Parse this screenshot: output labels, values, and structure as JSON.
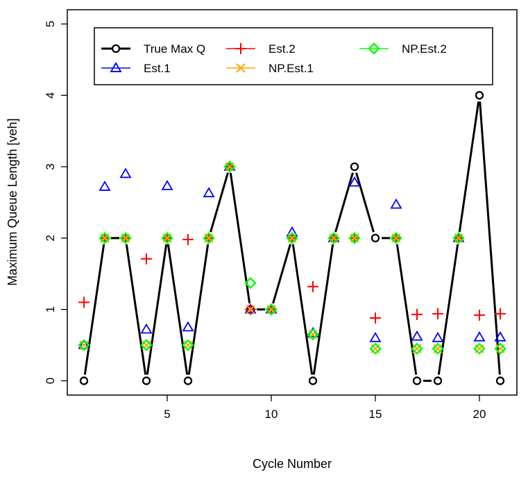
{
  "chart_data": {
    "type": "line",
    "title": "",
    "xlabel": "Cycle Number",
    "ylabel": "Maximum Queue Length [veh]",
    "xlim": [
      0.2,
      21.8
    ],
    "ylim": [
      -0.2,
      5.2
    ],
    "xticks": [
      5,
      10,
      15,
      20
    ],
    "yticks": [
      0,
      1,
      2,
      3,
      4,
      5
    ],
    "x": [
      1,
      2,
      3,
      4,
      5,
      6,
      7,
      8,
      9,
      10,
      11,
      12,
      13,
      14,
      15,
      16,
      17,
      18,
      19,
      20,
      21
    ],
    "legend_position": "top",
    "series": [
      {
        "name": "True Max Q",
        "color": "#000000",
        "marker": "circle",
        "line": true,
        "values": [
          0,
          2,
          2,
          0,
          2,
          0,
          2,
          3,
          1,
          1,
          2,
          0,
          2,
          3,
          2,
          2,
          0,
          0,
          2,
          4,
          0
        ]
      },
      {
        "name": "Est.1",
        "color": "#0000ff",
        "marker": "triangle",
        "line": false,
        "values": [
          0.5,
          2.72,
          2.9,
          0.72,
          2.73,
          0.75,
          2.63,
          3.0,
          1.0,
          1.0,
          2.08,
          0.67,
          2.0,
          2.78,
          0.6,
          2.47,
          0.62,
          0.6,
          2.0,
          0.61,
          0.61
        ]
      },
      {
        "name": "Est.2",
        "color": "#ff0000",
        "marker": "plus",
        "line": false,
        "values": [
          1.1,
          2.0,
          2.0,
          1.71,
          2.0,
          1.98,
          2.0,
          3.0,
          1.0,
          1.0,
          2.0,
          1.32,
          2.0,
          2.0,
          0.88,
          2.0,
          0.93,
          0.94,
          2.0,
          0.92,
          0.94
        ]
      },
      {
        "name": "NP.Est.1",
        "color": "#ffa500",
        "marker": "x",
        "line": false,
        "values": [
          0.5,
          2.0,
          2.0,
          0.5,
          2.0,
          0.5,
          2.0,
          3.0,
          1.0,
          1.0,
          2.0,
          0.65,
          2.0,
          2.0,
          0.45,
          2.0,
          0.45,
          0.45,
          2.0,
          0.45,
          0.45
        ]
      },
      {
        "name": "NP.Est.2",
        "color": "#00ff00",
        "marker": "diamond",
        "line": false,
        "values": [
          0.5,
          2.0,
          2.0,
          0.5,
          2.0,
          0.5,
          2.0,
          3.0,
          1.37,
          1.0,
          2.0,
          0.65,
          2.0,
          2.0,
          0.45,
          2.0,
          0.45,
          0.45,
          2.0,
          0.45,
          0.45
        ]
      }
    ]
  }
}
